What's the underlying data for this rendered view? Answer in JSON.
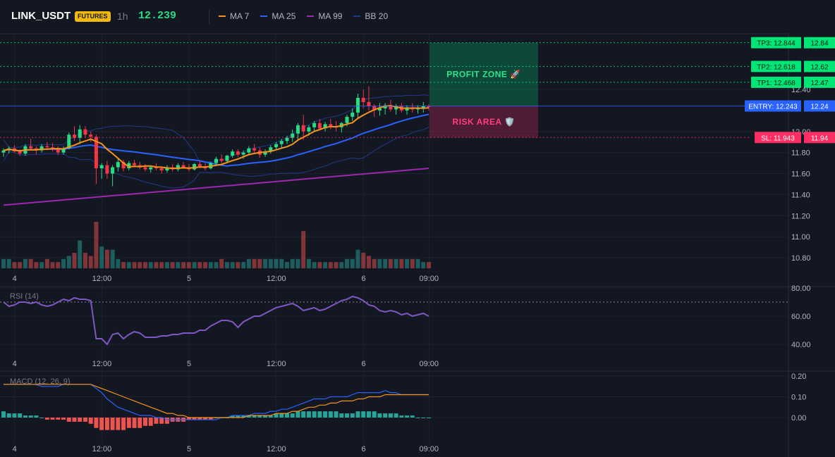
{
  "header": {
    "symbol": "LINK_USDT",
    "badge": "FUTURES",
    "interval": "1h",
    "price": "12.239"
  },
  "legend": [
    {
      "label": "MA 7",
      "color": "#f7931a"
    },
    {
      "label": "MA 25",
      "color": "#2962ff"
    },
    {
      "label": "MA 99",
      "color": "#9c27b0"
    },
    {
      "label": "BB 20",
      "color": "#1e3a8a"
    }
  ],
  "colors": {
    "up": "#26de81",
    "down": "#f23645",
    "tp": "#00e676",
    "sl": "#ff2e63",
    "entry": "#2962ff",
    "rsi": "#7e57c2",
    "macd": "#2962ff",
    "signal": "#f7931a"
  },
  "chart_data": [
    {
      "type": "candlestick",
      "title": "LINK_USDT 1h",
      "y_ticks": [
        "12.40",
        "12.00",
        "11.80",
        "11.60",
        "11.40",
        "11.20",
        "11.00",
        "10.80"
      ],
      "ylim": [
        10.7,
        12.9
      ],
      "x_ticks": [
        {
          "label": "4",
          "index": 1
        },
        {
          "label": "12:00",
          "index": 17
        },
        {
          "label": "5",
          "index": 33
        },
        {
          "label": "12:00",
          "index": 49
        },
        {
          "label": "6",
          "index": 65
        },
        {
          "label": "09:00",
          "index": 77
        }
      ],
      "candles": [
        [
          11.8,
          11.84,
          11.76,
          11.82
        ],
        [
          11.82,
          11.86,
          11.79,
          11.84
        ],
        [
          11.84,
          11.87,
          11.8,
          11.81
        ],
        [
          11.81,
          11.83,
          11.77,
          11.79
        ],
        [
          11.79,
          11.88,
          11.77,
          11.86
        ],
        [
          11.86,
          11.93,
          11.82,
          11.84
        ],
        [
          11.84,
          11.86,
          11.78,
          11.82
        ],
        [
          11.82,
          11.88,
          11.8,
          11.86
        ],
        [
          11.86,
          11.9,
          11.83,
          11.85
        ],
        [
          11.85,
          11.89,
          11.81,
          11.83
        ],
        [
          11.83,
          11.86,
          11.78,
          11.8
        ],
        [
          11.8,
          11.86,
          11.78,
          11.84
        ],
        [
          11.84,
          11.99,
          11.83,
          11.97
        ],
        [
          11.97,
          12.05,
          11.91,
          11.94
        ],
        [
          11.94,
          12.06,
          11.88,
          12.02
        ],
        [
          12.02,
          12.05,
          11.94,
          11.97
        ],
        [
          11.97,
          12.0,
          11.9,
          11.95
        ],
        [
          11.95,
          11.97,
          11.5,
          11.65
        ],
        [
          11.65,
          11.7,
          11.55,
          11.68
        ],
        [
          11.68,
          11.72,
          11.55,
          11.6
        ],
        [
          11.6,
          11.68,
          11.48,
          11.66
        ],
        [
          11.66,
          11.74,
          11.62,
          11.71
        ],
        [
          11.71,
          11.73,
          11.62,
          11.65
        ],
        [
          11.65,
          11.72,
          11.63,
          11.7
        ],
        [
          11.7,
          11.73,
          11.66,
          11.68
        ],
        [
          11.68,
          11.71,
          11.64,
          11.66
        ],
        [
          11.66,
          11.69,
          11.62,
          11.64
        ],
        [
          11.64,
          11.68,
          11.61,
          11.66
        ],
        [
          11.66,
          11.7,
          11.63,
          11.65
        ],
        [
          11.65,
          11.67,
          11.6,
          11.63
        ],
        [
          11.63,
          11.68,
          11.61,
          11.66
        ],
        [
          11.66,
          11.69,
          11.62,
          11.64
        ],
        [
          11.64,
          11.7,
          11.62,
          11.68
        ],
        [
          11.68,
          11.71,
          11.65,
          11.66
        ],
        [
          11.66,
          11.69,
          11.62,
          11.64
        ],
        [
          11.64,
          11.7,
          11.63,
          11.69
        ],
        [
          11.69,
          11.72,
          11.65,
          11.67
        ],
        [
          11.67,
          11.7,
          11.63,
          11.65
        ],
        [
          11.65,
          11.71,
          11.64,
          11.7
        ],
        [
          11.7,
          11.76,
          11.68,
          11.74
        ],
        [
          11.74,
          11.78,
          11.7,
          11.72
        ],
        [
          11.72,
          11.78,
          11.7,
          11.77
        ],
        [
          11.77,
          11.83,
          11.75,
          11.81
        ],
        [
          11.81,
          11.83,
          11.76,
          11.78
        ],
        [
          11.78,
          11.82,
          11.74,
          11.8
        ],
        [
          11.8,
          11.86,
          11.78,
          11.84
        ],
        [
          11.84,
          11.88,
          11.8,
          11.82
        ],
        [
          11.82,
          11.85,
          11.75,
          11.78
        ],
        [
          11.78,
          11.83,
          11.76,
          11.81
        ],
        [
          11.81,
          11.87,
          11.79,
          11.85
        ],
        [
          11.85,
          11.9,
          11.82,
          11.88
        ],
        [
          11.88,
          11.93,
          11.84,
          11.91
        ],
        [
          11.91,
          11.96,
          11.88,
          11.94
        ],
        [
          11.94,
          12.02,
          11.9,
          11.98
        ],
        [
          11.98,
          12.08,
          11.92,
          12.06
        ],
        [
          12.06,
          12.16,
          11.92,
          12.0
        ],
        [
          12.0,
          12.06,
          11.96,
          12.04
        ],
        [
          12.04,
          12.1,
          12.0,
          12.08
        ],
        [
          12.08,
          12.12,
          12.01,
          12.03
        ],
        [
          12.03,
          12.09,
          12.0,
          12.07
        ],
        [
          12.07,
          12.12,
          12.02,
          12.05
        ],
        [
          12.05,
          12.1,
          12.0,
          12.04
        ],
        [
          12.04,
          12.09,
          11.99,
          12.08
        ],
        [
          12.08,
          12.16,
          12.05,
          12.14
        ],
        [
          12.14,
          12.22,
          12.1,
          12.18
        ],
        [
          12.18,
          12.36,
          12.12,
          12.32
        ],
        [
          12.32,
          12.4,
          12.22,
          12.28
        ],
        [
          12.28,
          12.43,
          12.2,
          12.24
        ],
        [
          12.24,
          12.26,
          12.14,
          12.2
        ],
        [
          12.2,
          12.27,
          12.15,
          12.22
        ],
        [
          12.22,
          12.27,
          12.16,
          12.25
        ],
        [
          12.25,
          12.3,
          12.19,
          12.21
        ],
        [
          12.21,
          12.26,
          12.16,
          12.24
        ],
        [
          12.24,
          12.27,
          12.18,
          12.2
        ],
        [
          12.2,
          12.25,
          12.16,
          12.23
        ],
        [
          12.23,
          12.27,
          12.18,
          12.21
        ],
        [
          12.21,
          12.25,
          12.17,
          12.22
        ],
        [
          12.22,
          12.28,
          12.18,
          12.24
        ],
        [
          12.24,
          12.26,
          12.2,
          12.239
        ]
      ],
      "volume": [
        3,
        3,
        2,
        2,
        3,
        3,
        2,
        2,
        3,
        2,
        2,
        3,
        4,
        5,
        9,
        5,
        4,
        15,
        7,
        6,
        6,
        3,
        2,
        2,
        2,
        2,
        2,
        2,
        2,
        2,
        2,
        2,
        2,
        2,
        2,
        2,
        2,
        2,
        2,
        2,
        3,
        2,
        2,
        2,
        2,
        3,
        3,
        3,
        3,
        3,
        3,
        3,
        2,
        3,
        3,
        12,
        3,
        2,
        2,
        2,
        2,
        2,
        2,
        3,
        3,
        6,
        5,
        4,
        3,
        3,
        3,
        3,
        3,
        3,
        3,
        3,
        3,
        2,
        2
      ],
      "volume_ticks_hidden": true,
      "levels": [
        {
          "name": "TP3",
          "value": 12.844,
          "tag": "TP3: 12.844",
          "axis": "12.84"
        },
        {
          "name": "TP2",
          "value": 12.618,
          "tag": "TP2: 12.618",
          "axis": "12.62"
        },
        {
          "name": "TP1",
          "value": 12.468,
          "tag": "TP1: 12.468",
          "axis": "12.47"
        },
        {
          "name": "ENTRY",
          "value": 12.243,
          "tag": "ENTRY: 12.243",
          "axis": "12.24"
        },
        {
          "name": "SL",
          "value": 11.943,
          "tag": "SL: 11.943",
          "axis": "11.94"
        }
      ],
      "zones": [
        {
          "name": "profit",
          "label": "PROFIT ZONE 🚀",
          "from": 12.243,
          "to": 12.844
        },
        {
          "name": "risk",
          "label": "RISK AREA 🛡️",
          "from": 11.943,
          "to": 12.243
        }
      ]
    },
    {
      "type": "line",
      "title": "RSI (14)",
      "y_ticks": [
        "80.00",
        "60.00",
        "40.00"
      ],
      "ylim": [
        30,
        80
      ],
      "overbought": 70,
      "x_ticks": [
        "4",
        "12:00",
        "5",
        "12:00",
        "6",
        "09:00"
      ],
      "values": [
        70,
        67,
        68,
        70,
        70,
        69,
        70,
        68,
        67,
        68,
        70,
        72,
        71,
        73,
        72,
        72,
        71,
        44,
        44,
        40,
        47,
        48,
        44,
        47,
        49,
        48,
        45,
        45,
        45,
        46,
        46,
        47,
        47,
        48,
        48,
        48,
        50,
        50,
        53,
        55,
        57,
        57,
        56,
        52,
        56,
        58,
        60,
        60,
        62,
        64,
        66,
        67,
        68,
        69,
        67,
        64,
        65,
        66,
        64,
        65,
        67,
        69,
        71,
        72,
        74,
        73,
        71,
        68,
        67,
        64,
        63,
        64,
        63,
        61,
        62,
        60,
        61,
        62,
        60
      ]
    },
    {
      "type": "bar",
      "title": "MACD (12, 26, 9)",
      "y_ticks": [
        "0.20",
        "0.10",
        "0.00"
      ],
      "ylim": [
        -0.1,
        0.2
      ],
      "x_ticks": [
        "4",
        "12:00",
        "5",
        "12:00",
        "6",
        "09:00"
      ],
      "macd": [
        0.16,
        0.16,
        0.16,
        0.16,
        0.16,
        0.16,
        0.16,
        0.15,
        0.15,
        0.15,
        0.15,
        0.16,
        0.16,
        0.16,
        0.16,
        0.16,
        0.16,
        0.14,
        0.12,
        0.09,
        0.07,
        0.05,
        0.04,
        0.03,
        0.02,
        0.01,
        0.01,
        0.01,
        0.0,
        0.0,
        -0.01,
        -0.01,
        -0.01,
        -0.01,
        -0.01,
        -0.01,
        -0.01,
        -0.01,
        -0.01,
        -0.01,
        0.0,
        0.0,
        0.01,
        0.01,
        0.01,
        0.01,
        0.02,
        0.02,
        0.02,
        0.03,
        0.03,
        0.04,
        0.04,
        0.05,
        0.06,
        0.07,
        0.08,
        0.09,
        0.09,
        0.09,
        0.1,
        0.1,
        0.1,
        0.1,
        0.11,
        0.12,
        0.12,
        0.12,
        0.12,
        0.12,
        0.13,
        0.12,
        0.12,
        0.11,
        0.11,
        0.11,
        0.11,
        0.11,
        0.11
      ],
      "signal": [
        0.16,
        0.16,
        0.16,
        0.16,
        0.16,
        0.16,
        0.16,
        0.16,
        0.16,
        0.16,
        0.16,
        0.16,
        0.16,
        0.16,
        0.16,
        0.16,
        0.16,
        0.15,
        0.14,
        0.13,
        0.12,
        0.11,
        0.1,
        0.09,
        0.08,
        0.07,
        0.06,
        0.05,
        0.04,
        0.03,
        0.02,
        0.02,
        0.01,
        0.01,
        0.0,
        0.0,
        0.0,
        0.0,
        0.0,
        0.0,
        0.0,
        0.0,
        0.0,
        0.0,
        0.0,
        0.01,
        0.01,
        0.01,
        0.01,
        0.01,
        0.02,
        0.02,
        0.02,
        0.03,
        0.03,
        0.04,
        0.05,
        0.05,
        0.06,
        0.06,
        0.07,
        0.07,
        0.08,
        0.08,
        0.08,
        0.09,
        0.09,
        0.1,
        0.1,
        0.1,
        0.11,
        0.11,
        0.11,
        0.11,
        0.11,
        0.11,
        0.11,
        0.11,
        0.11
      ],
      "histogram": [
        0.03,
        0.02,
        0.02,
        0.02,
        0.01,
        0.01,
        0.01,
        0.0,
        -0.01,
        -0.01,
        -0.01,
        -0.01,
        -0.02,
        -0.02,
        -0.02,
        -0.02,
        -0.03,
        -0.05,
        -0.06,
        -0.06,
        -0.06,
        -0.06,
        -0.06,
        -0.05,
        -0.05,
        -0.05,
        -0.04,
        -0.04,
        -0.03,
        -0.03,
        -0.03,
        -0.02,
        -0.02,
        -0.02,
        -0.01,
        -0.01,
        -0.01,
        -0.01,
        -0.01,
        0.0,
        0.0,
        0.0,
        0.01,
        0.01,
        0.01,
        0.01,
        0.01,
        0.01,
        0.01,
        0.01,
        0.02,
        0.02,
        0.02,
        0.02,
        0.03,
        0.03,
        0.03,
        0.03,
        0.03,
        0.03,
        0.03,
        0.03,
        0.02,
        0.02,
        0.02,
        0.03,
        0.03,
        0.03,
        0.03,
        0.02,
        0.02,
        0.02,
        0.02,
        0.01,
        0.01,
        0.01,
        0.0,
        0.0,
        0.0
      ]
    }
  ]
}
